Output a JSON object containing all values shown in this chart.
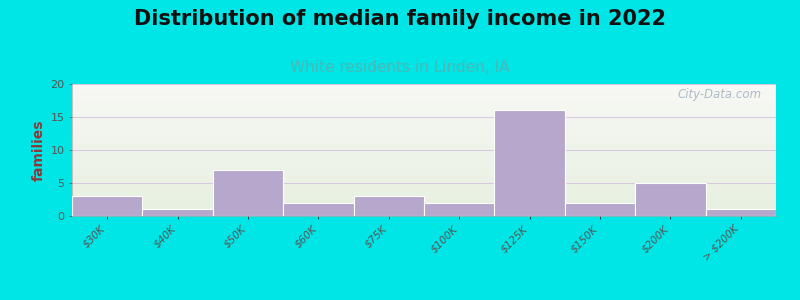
{
  "title": "Distribution of median family income in 2022",
  "subtitle": "White residents in Linden, IA",
  "ylabel": "families",
  "categories": [
    "$30K",
    "$40K",
    "$50K",
    "$60K",
    "$75K",
    "$100K",
    "$125K",
    "$150K",
    "$200K",
    "> $200K"
  ],
  "values": [
    3,
    1,
    7,
    2,
    3,
    2,
    16,
    2,
    5,
    1
  ],
  "bar_color": "#b5a8cc",
  "ylim": [
    0,
    20
  ],
  "yticks": [
    0,
    5,
    10,
    15,
    20
  ],
  "bg_outer": "#00e5e5",
  "bg_plot_top": "#e6f0e0",
  "bg_plot_bottom": "#f8f8f4",
  "grid_color": "#d8c8e0",
  "title_fontsize": 15,
  "subtitle_fontsize": 11,
  "subtitle_color": "#4ab8b8",
  "ylabel_color": "#8b3a3a",
  "tick_color": "#555555",
  "watermark_text": "City-Data.com",
  "watermark_color": "#a0b0c0"
}
